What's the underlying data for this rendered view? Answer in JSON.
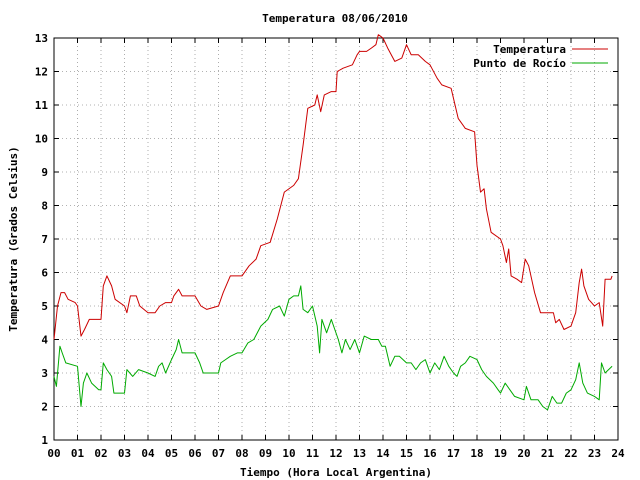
{
  "chart_data": {
    "type": "line",
    "title": "Temperatura 08/06/2010",
    "xlabel": "Tiempo (Hora Local Argentina)",
    "ylabel": "Temperatura (Grados Celsius)",
    "xlim": [
      0,
      24
    ],
    "ylim": [
      1,
      13
    ],
    "grid": true,
    "legend_position": "top-right",
    "x_ticks": [
      "00",
      "01",
      "02",
      "03",
      "04",
      "05",
      "06",
      "07",
      "08",
      "09",
      "10",
      "11",
      "12",
      "13",
      "14",
      "15",
      "16",
      "17",
      "18",
      "19",
      "20",
      "21",
      "22",
      "23",
      "24"
    ],
    "y_ticks": [
      "1",
      "2",
      "3",
      "4",
      "5",
      "6",
      "7",
      "8",
      "9",
      "10",
      "11",
      "12",
      "13"
    ],
    "series": [
      {
        "name": "Temperatura",
        "color": "#cc0000",
        "points": [
          [
            0.0,
            4.0
          ],
          [
            0.15,
            5.0
          ],
          [
            0.3,
            5.4
          ],
          [
            0.45,
            5.4
          ],
          [
            0.6,
            5.2
          ],
          [
            0.9,
            5.1
          ],
          [
            1.0,
            5.0
          ],
          [
            1.15,
            4.1
          ],
          [
            1.3,
            4.3
          ],
          [
            1.5,
            4.6
          ],
          [
            2.0,
            4.6
          ],
          [
            2.1,
            5.6
          ],
          [
            2.25,
            5.9
          ],
          [
            2.45,
            5.6
          ],
          [
            2.6,
            5.2
          ],
          [
            3.0,
            5.0
          ],
          [
            3.1,
            4.8
          ],
          [
            3.25,
            5.3
          ],
          [
            3.5,
            5.3
          ],
          [
            3.65,
            5.0
          ],
          [
            4.0,
            4.8
          ],
          [
            4.3,
            4.8
          ],
          [
            4.5,
            5.0
          ],
          [
            4.75,
            5.1
          ],
          [
            5.0,
            5.1
          ],
          [
            5.1,
            5.3
          ],
          [
            5.3,
            5.5
          ],
          [
            5.45,
            5.3
          ],
          [
            6.0,
            5.3
          ],
          [
            6.25,
            5.0
          ],
          [
            6.5,
            4.9
          ],
          [
            7.0,
            5.0
          ],
          [
            7.2,
            5.4
          ],
          [
            7.5,
            5.9
          ],
          [
            8.0,
            5.9
          ],
          [
            8.3,
            6.2
          ],
          [
            8.6,
            6.4
          ],
          [
            8.8,
            6.8
          ],
          [
            9.2,
            6.9
          ],
          [
            9.5,
            7.6
          ],
          [
            9.8,
            8.4
          ],
          [
            10.2,
            8.6
          ],
          [
            10.4,
            8.8
          ],
          [
            10.6,
            9.8
          ],
          [
            10.8,
            10.9
          ],
          [
            11.1,
            11.0
          ],
          [
            11.2,
            11.3
          ],
          [
            11.35,
            10.8
          ],
          [
            11.5,
            11.3
          ],
          [
            11.8,
            11.4
          ],
          [
            12.0,
            11.4
          ],
          [
            12.05,
            12.0
          ],
          [
            12.3,
            12.1
          ],
          [
            12.7,
            12.2
          ],
          [
            12.9,
            12.5
          ],
          [
            13.0,
            12.6
          ],
          [
            13.3,
            12.6
          ],
          [
            13.5,
            12.7
          ],
          [
            13.7,
            12.8
          ],
          [
            13.8,
            13.1
          ],
          [
            14.0,
            13.0
          ],
          [
            14.2,
            12.7
          ],
          [
            14.5,
            12.3
          ],
          [
            14.8,
            12.4
          ],
          [
            15.0,
            12.8
          ],
          [
            15.2,
            12.5
          ],
          [
            15.5,
            12.5
          ],
          [
            15.8,
            12.3
          ],
          [
            16.0,
            12.2
          ],
          [
            16.3,
            11.8
          ],
          [
            16.5,
            11.6
          ],
          [
            16.9,
            11.5
          ],
          [
            17.2,
            10.6
          ],
          [
            17.5,
            10.3
          ],
          [
            17.9,
            10.2
          ],
          [
            18.0,
            9.2
          ],
          [
            18.15,
            8.4
          ],
          [
            18.3,
            8.5
          ],
          [
            18.4,
            7.9
          ],
          [
            18.6,
            7.2
          ],
          [
            19.0,
            7.0
          ],
          [
            19.1,
            6.8
          ],
          [
            19.25,
            6.3
          ],
          [
            19.35,
            6.7
          ],
          [
            19.45,
            5.9
          ],
          [
            19.7,
            5.8
          ],
          [
            19.9,
            5.7
          ],
          [
            20.05,
            6.4
          ],
          [
            20.2,
            6.2
          ],
          [
            20.45,
            5.4
          ],
          [
            20.7,
            4.8
          ],
          [
            21.0,
            4.8
          ],
          [
            21.25,
            4.8
          ],
          [
            21.35,
            4.5
          ],
          [
            21.5,
            4.6
          ],
          [
            21.7,
            4.3
          ],
          [
            22.0,
            4.4
          ],
          [
            22.2,
            4.8
          ],
          [
            22.35,
            5.7
          ],
          [
            22.45,
            6.1
          ],
          [
            22.55,
            5.6
          ],
          [
            22.75,
            5.2
          ],
          [
            23.0,
            5.0
          ],
          [
            23.2,
            5.1
          ],
          [
            23.35,
            4.4
          ],
          [
            23.45,
            5.8
          ],
          [
            23.7,
            5.8
          ],
          [
            23.75,
            5.9
          ]
        ]
      },
      {
        "name": "Punto de Rocío",
        "color": "#00aa00",
        "points": [
          [
            0.0,
            2.9
          ],
          [
            0.1,
            2.6
          ],
          [
            0.25,
            3.8
          ],
          [
            0.35,
            3.6
          ],
          [
            0.5,
            3.3
          ],
          [
            1.0,
            3.2
          ],
          [
            1.15,
            2.0
          ],
          [
            1.25,
            2.7
          ],
          [
            1.4,
            3.0
          ],
          [
            1.6,
            2.7
          ],
          [
            1.9,
            2.5
          ],
          [
            2.0,
            2.5
          ],
          [
            2.1,
            3.3
          ],
          [
            2.25,
            3.1
          ],
          [
            2.45,
            2.9
          ],
          [
            2.55,
            2.4
          ],
          [
            3.0,
            2.4
          ],
          [
            3.1,
            3.1
          ],
          [
            3.35,
            2.9
          ],
          [
            3.6,
            3.1
          ],
          [
            4.0,
            3.0
          ],
          [
            4.3,
            2.9
          ],
          [
            4.45,
            3.2
          ],
          [
            4.6,
            3.3
          ],
          [
            4.75,
            3.0
          ],
          [
            5.0,
            3.4
          ],
          [
            5.2,
            3.7
          ],
          [
            5.3,
            4.0
          ],
          [
            5.45,
            3.6
          ],
          [
            6.0,
            3.6
          ],
          [
            6.2,
            3.3
          ],
          [
            6.35,
            3.0
          ],
          [
            7.0,
            3.0
          ],
          [
            7.1,
            3.3
          ],
          [
            7.3,
            3.4
          ],
          [
            7.5,
            3.5
          ],
          [
            7.8,
            3.6
          ],
          [
            8.0,
            3.6
          ],
          [
            8.25,
            3.9
          ],
          [
            8.5,
            4.0
          ],
          [
            8.8,
            4.4
          ],
          [
            9.1,
            4.6
          ],
          [
            9.3,
            4.9
          ],
          [
            9.6,
            5.0
          ],
          [
            9.8,
            4.7
          ],
          [
            10.0,
            5.2
          ],
          [
            10.2,
            5.3
          ],
          [
            10.4,
            5.3
          ],
          [
            10.5,
            5.6
          ],
          [
            10.6,
            4.9
          ],
          [
            10.8,
            4.8
          ],
          [
            11.0,
            5.0
          ],
          [
            11.2,
            4.4
          ],
          [
            11.3,
            3.6
          ],
          [
            11.4,
            4.6
          ],
          [
            11.6,
            4.2
          ],
          [
            11.8,
            4.6
          ],
          [
            11.95,
            4.3
          ],
          [
            12.1,
            4.0
          ],
          [
            12.25,
            3.6
          ],
          [
            12.4,
            4.0
          ],
          [
            12.6,
            3.7
          ],
          [
            12.8,
            4.0
          ],
          [
            13.0,
            3.6
          ],
          [
            13.2,
            4.1
          ],
          [
            13.5,
            4.0
          ],
          [
            13.8,
            4.0
          ],
          [
            13.95,
            3.8
          ],
          [
            14.1,
            3.8
          ],
          [
            14.3,
            3.2
          ],
          [
            14.5,
            3.5
          ],
          [
            14.7,
            3.5
          ],
          [
            15.0,
            3.3
          ],
          [
            15.2,
            3.3
          ],
          [
            15.4,
            3.1
          ],
          [
            15.6,
            3.3
          ],
          [
            15.8,
            3.4
          ],
          [
            16.0,
            3.0
          ],
          [
            16.2,
            3.3
          ],
          [
            16.4,
            3.1
          ],
          [
            16.6,
            3.5
          ],
          [
            16.8,
            3.2
          ],
          [
            17.0,
            3.0
          ],
          [
            17.15,
            2.9
          ],
          [
            17.3,
            3.2
          ],
          [
            17.5,
            3.3
          ],
          [
            17.7,
            3.5
          ],
          [
            18.0,
            3.4
          ],
          [
            18.2,
            3.1
          ],
          [
            18.4,
            2.9
          ],
          [
            18.7,
            2.7
          ],
          [
            18.9,
            2.5
          ],
          [
            19.0,
            2.4
          ],
          [
            19.2,
            2.7
          ],
          [
            19.4,
            2.5
          ],
          [
            19.6,
            2.3
          ],
          [
            20.0,
            2.2
          ],
          [
            20.1,
            2.6
          ],
          [
            20.3,
            2.2
          ],
          [
            20.6,
            2.2
          ],
          [
            20.8,
            2.0
          ],
          [
            21.0,
            1.9
          ],
          [
            21.2,
            2.3
          ],
          [
            21.4,
            2.1
          ],
          [
            21.6,
            2.1
          ],
          [
            21.8,
            2.4
          ],
          [
            22.0,
            2.5
          ],
          [
            22.2,
            2.8
          ],
          [
            22.35,
            3.3
          ],
          [
            22.5,
            2.7
          ],
          [
            22.7,
            2.4
          ],
          [
            23.0,
            2.3
          ],
          [
            23.2,
            2.2
          ],
          [
            23.3,
            3.3
          ],
          [
            23.45,
            3.0
          ],
          [
            23.6,
            3.1
          ],
          [
            23.75,
            3.2
          ]
        ]
      }
    ]
  }
}
